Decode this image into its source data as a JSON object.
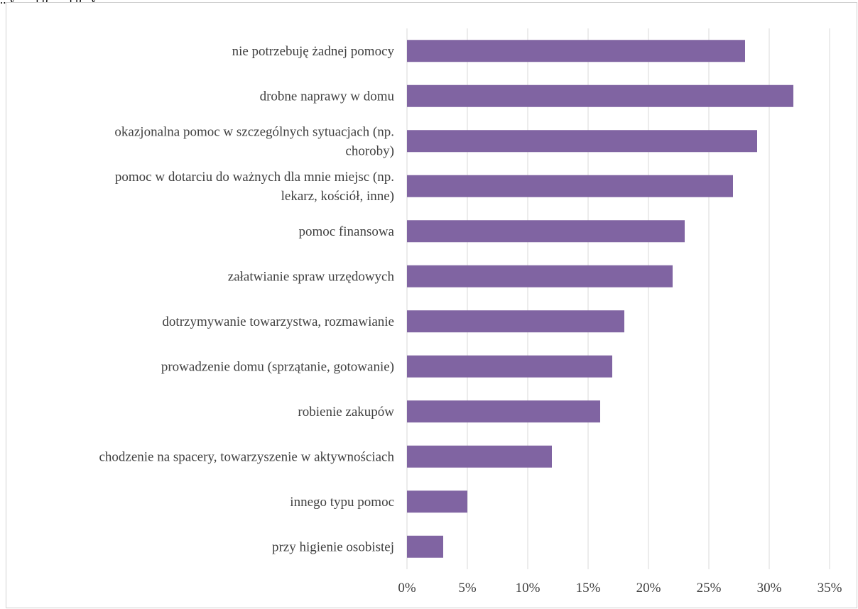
{
  "caption": "...y... ...j p... ...j p...y",
  "colors": {
    "bar": "#8064a2",
    "grid": "#d9d9d9",
    "text": "#404040"
  },
  "chart_data": {
    "type": "bar",
    "orientation": "horizontal",
    "title": "",
    "xlabel": "",
    "ylabel": "",
    "categories": [
      [
        "nie potrzebuję żadnej pomocy"
      ],
      [
        "drobne naprawy w domu"
      ],
      [
        "okazjonalna pomoc w szczególnych sytuacjach (np.",
        "choroby)"
      ],
      [
        "pomoc w dotarciu do ważnych dla mnie miejsc (np.",
        "lekarz, kościół, inne)"
      ],
      [
        "pomoc finansowa"
      ],
      [
        "załatwianie spraw urzędowych"
      ],
      [
        "dotrzymywanie towarzystwa, rozmawianie"
      ],
      [
        "prowadzenie domu (sprzątanie, gotowanie)"
      ],
      [
        "robienie zakupów"
      ],
      [
        "chodzenie na spacery, towarzyszenie w aktywnościach"
      ],
      [
        "innego typu pomoc"
      ],
      [
        "przy higienie osobistej"
      ]
    ],
    "values": [
      28,
      32,
      29,
      27,
      23,
      22,
      18,
      17,
      16,
      12,
      5,
      3
    ],
    "xlim": [
      0,
      35
    ],
    "ticks": [
      "0%",
      "5%",
      "10%",
      "15%",
      "20%",
      "25%",
      "30%",
      "35%"
    ],
    "tick_values": [
      0,
      5,
      10,
      15,
      20,
      25,
      30,
      35
    ],
    "grid": "vertical",
    "legend": "none"
  }
}
